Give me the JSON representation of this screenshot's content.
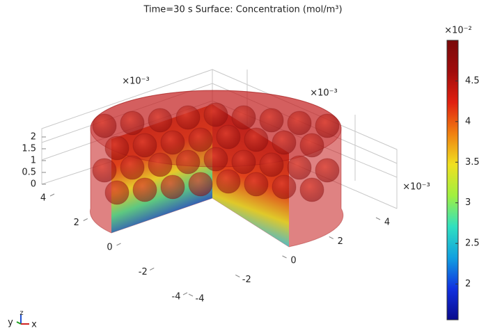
{
  "chart_data": {
    "type": "surface3d",
    "title": "Time=30 s   Surface: Concentration (mol/m³)",
    "colormap": "rainbow",
    "clim": [
      1.56,
      5.0
    ],
    "colorbar_ticks": [
      2,
      2.5,
      3,
      3.5,
      4,
      4.5
    ],
    "colorbar_multiplier": "×10⁻²",
    "xlim": [
      -4,
      4
    ],
    "xticks": [
      -4,
      -2,
      0,
      2,
      4
    ],
    "x_multiplier": "×10⁻³",
    "ylim": [
      -4,
      4
    ],
    "yticks": [
      -4,
      -2,
      0,
      2,
      4
    ],
    "y_multiplier": "×10⁻³",
    "zlim": [
      0,
      2
    ],
    "zticks": [
      0,
      0.5,
      1,
      1.5,
      2
    ],
    "z_multiplier": "×10⁻³",
    "triad": [
      "y",
      "z",
      "x"
    ]
  }
}
